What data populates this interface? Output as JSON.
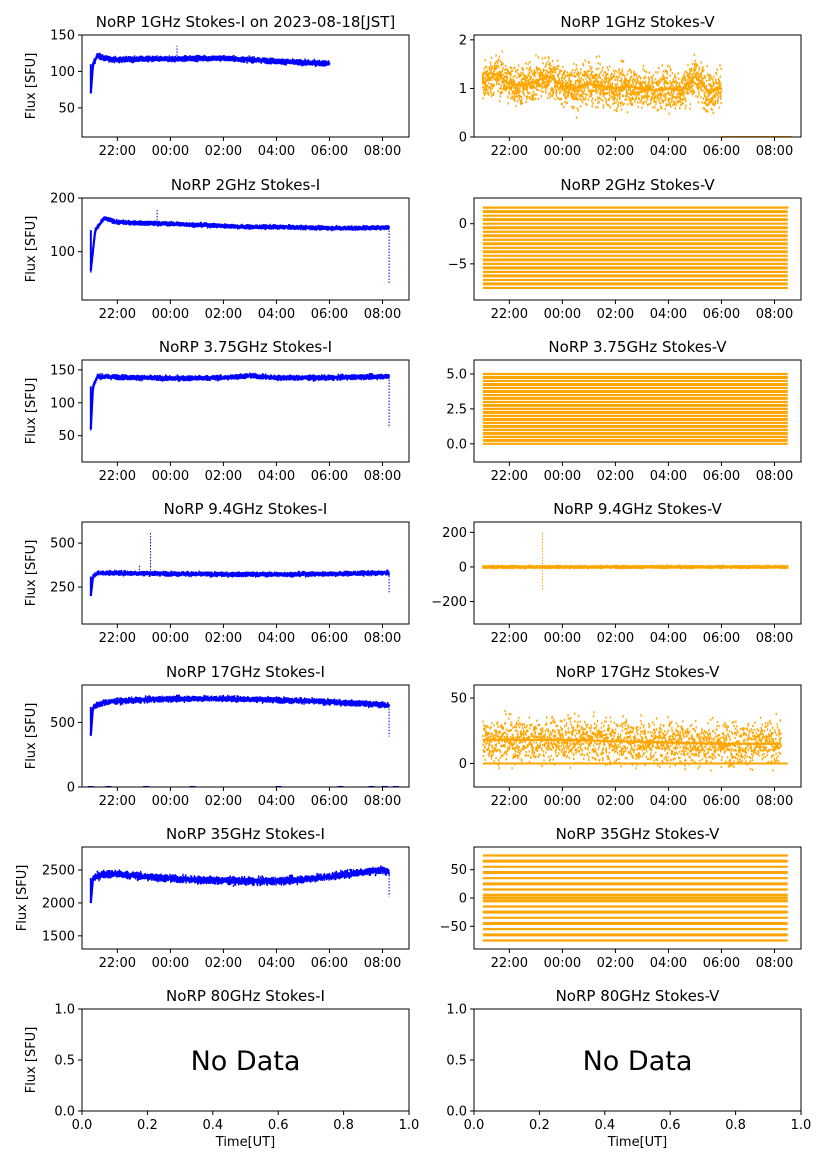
{
  "figure": {
    "xlabel": "Time[UT]",
    "ylabel": "Flux [SFU]",
    "series_colors": {
      "stokes_i": "#0000ff",
      "stokes_v": "#ffa500"
    },
    "time_ticks": [
      "22:00",
      "00:00",
      "02:00",
      "04:00",
      "06:00",
      "08:00"
    ]
  },
  "chart_data": [
    {
      "id": "1ghz-i",
      "type": "scatter",
      "title": "NoRP 1GHz Stokes-I on 2023-08-18[JST]",
      "ylabel": "Flux [SFU]",
      "xlabel": "",
      "color": "#0000ff",
      "x_range": [
        "20:40",
        "09:00"
      ],
      "ylim": [
        10,
        150
      ],
      "y_ticks": [
        {
          "v": 50,
          "t": "50"
        },
        {
          "v": 100,
          "t": "100"
        },
        {
          "v": 150,
          "t": "150"
        }
      ],
      "trace": {
        "x": [
          "21:00",
          "21:05",
          "21:15",
          "21:30",
          "22:00",
          "23:00",
          "00:00",
          "01:00",
          "02:00",
          "03:00",
          "04:00",
          "05:00",
          "06:00"
        ],
        "y": [
          70,
          110,
          122,
          118,
          116,
          117,
          117,
          118,
          118,
          116,
          114,
          112,
          111
        ]
      },
      "spread": 3,
      "range_end": "06:00",
      "spikes": [
        {
          "x": "00:15",
          "y": 135
        }
      ]
    },
    {
      "id": "1ghz-v",
      "type": "scatter",
      "title": "NoRP 1GHz Stokes-V",
      "ylabel": "",
      "xlabel": "",
      "color": "#ffa500",
      "x_range": [
        "20:40",
        "09:00"
      ],
      "ylim": [
        0,
        2.1
      ],
      "y_ticks": [
        {
          "v": 0,
          "t": "0"
        },
        {
          "v": 1,
          "t": "1"
        },
        {
          "v": 2,
          "t": "2"
        }
      ],
      "trace": {
        "x": [
          "21:00",
          "21:30",
          "22:00",
          "22:30",
          "23:00",
          "23:30",
          "00:00",
          "00:30",
          "01:00",
          "01:30",
          "02:00",
          "02:30",
          "03:00",
          "03:30",
          "04:00",
          "04:30",
          "05:00",
          "05:30",
          "06:00"
        ],
        "y": [
          1.1,
          1.3,
          1.1,
          1.05,
          1.15,
          1.25,
          1.05,
          1.0,
          1.1,
          1.05,
          1.0,
          1.05,
          1.0,
          0.95,
          1.0,
          0.95,
          1.25,
          0.95,
          1.0
        ]
      },
      "spread": 0.4,
      "range_end": "06:00",
      "baseline": {
        "from": "06:00",
        "to": "08:40",
        "y": 0
      }
    },
    {
      "id": "2ghz-i",
      "type": "scatter",
      "title": "NoRP 2GHz Stokes-I",
      "ylabel": "Flux [SFU]",
      "xlabel": "",
      "color": "#0000ff",
      "x_range": [
        "20:40",
        "09:00"
      ],
      "ylim": [
        10,
        200
      ],
      "y_ticks": [
        {
          "v": 100,
          "t": "100"
        },
        {
          "v": 200,
          "t": "200"
        }
      ],
      "trace": {
        "x": [
          "21:00",
          "21:10",
          "21:30",
          "22:00",
          "23:00",
          "00:00",
          "01:00",
          "02:00",
          "03:00",
          "04:00",
          "05:00",
          "06:00",
          "07:00",
          "08:00",
          "08:15"
        ],
        "y": [
          65,
          140,
          162,
          155,
          153,
          152,
          150,
          148,
          146,
          146,
          145,
          144,
          144,
          145,
          145
        ]
      },
      "spread": 3,
      "range_end": "08:15",
      "spikes": [
        {
          "x": "23:30",
          "y": 180
        },
        {
          "x": "08:15",
          "y": 40
        }
      ]
    },
    {
      "id": "2ghz-v",
      "type": "levels",
      "title": "NoRP 2GHz Stokes-V",
      "ylabel": "",
      "xlabel": "",
      "color": "#ffa500",
      "x_range": [
        "20:40",
        "09:00"
      ],
      "ylim": [
        -9.5,
        3.2
      ],
      "y_ticks": [
        {
          "v": -5,
          "t": "−5"
        },
        {
          "v": 0,
          "t": "0"
        }
      ],
      "levels": [
        2,
        1.5,
        1,
        0.5,
        0,
        -0.5,
        -1,
        -1.5,
        -2,
        -2.5,
        -3,
        -3.5,
        -4,
        -4.5,
        -5,
        -5.5,
        -6,
        -6.5,
        -7,
        -7.5,
        -8
      ],
      "data_start": "21:00",
      "range_end": "08:30"
    },
    {
      "id": "375ghz-i",
      "type": "scatter",
      "title": "NoRP 3.75GHz Stokes-I",
      "ylabel": "Flux [SFU]",
      "xlabel": "",
      "color": "#0000ff",
      "x_range": [
        "20:40",
        "09:00"
      ],
      "ylim": [
        10,
        165
      ],
      "y_ticks": [
        {
          "v": 50,
          "t": "50"
        },
        {
          "v": 100,
          "t": "100"
        },
        {
          "v": 150,
          "t": "150"
        }
      ],
      "trace": {
        "x": [
          "21:00",
          "21:05",
          "21:15",
          "22:00",
          "00:00",
          "02:00",
          "03:00",
          "04:00",
          "06:00",
          "08:00",
          "08:15"
        ],
        "y": [
          60,
          125,
          140,
          139,
          137,
          138,
          141,
          138,
          138,
          140,
          140
        ]
      },
      "spread": 3,
      "range_end": "08:15",
      "spikes": [
        {
          "x": "08:15",
          "y": 62
        }
      ]
    },
    {
      "id": "375ghz-v",
      "type": "levels",
      "title": "NoRP 3.75GHz Stokes-V",
      "ylabel": "",
      "xlabel": "",
      "color": "#ffa500",
      "x_range": [
        "20:40",
        "09:00"
      ],
      "ylim": [
        -1.3,
        6
      ],
      "y_ticks": [
        {
          "v": 0,
          "t": "0.0"
        },
        {
          "v": 2.5,
          "t": "2.5"
        },
        {
          "v": 5,
          "t": "5.0"
        }
      ],
      "levels": [
        0,
        0.25,
        0.5,
        0.75,
        1,
        1.25,
        1.5,
        1.75,
        2,
        2.25,
        2.5,
        2.75,
        3,
        3.25,
        3.5,
        3.75,
        4,
        4.25,
        4.5,
        4.75,
        5
      ],
      "data_start": "21:00",
      "range_end": "08:30"
    },
    {
      "id": "94ghz-i",
      "type": "scatter",
      "title": "NoRP 9.4GHz Stokes-I",
      "ylabel": "Flux [SFU]",
      "xlabel": "",
      "color": "#0000ff",
      "x_range": [
        "20:40",
        "09:00"
      ],
      "ylim": [
        40,
        620
      ],
      "y_ticks": [
        {
          "v": 250,
          "t": "250"
        },
        {
          "v": 500,
          "t": "500"
        }
      ],
      "trace": {
        "x": [
          "21:00",
          "21:05",
          "21:15",
          "22:00",
          "23:00",
          "00:00",
          "02:00",
          "04:00",
          "06:00",
          "08:00",
          "08:15"
        ],
        "y": [
          200,
          310,
          330,
          330,
          328,
          326,
          322,
          322,
          325,
          330,
          330
        ]
      },
      "spread": 10,
      "range_end": "08:15",
      "spikes": [
        {
          "x": "23:15",
          "y": 560
        },
        {
          "x": "22:50",
          "y": 380
        },
        {
          "x": "08:15",
          "y": 220
        }
      ]
    },
    {
      "id": "94ghz-v",
      "type": "scatter",
      "title": "NoRP 9.4GHz Stokes-V",
      "ylabel": "",
      "xlabel": "",
      "color": "#ffa500",
      "x_range": [
        "20:40",
        "09:00"
      ],
      "ylim": [
        -330,
        260
      ],
      "y_ticks": [
        {
          "v": -200,
          "t": "−200"
        },
        {
          "v": 0,
          "t": "0"
        },
        {
          "v": 200,
          "t": "200"
        }
      ],
      "trace": {
        "x": [
          "21:00",
          "08:30"
        ],
        "y": [
          0,
          0
        ]
      },
      "spread": 6,
      "range_end": "08:30",
      "spikes": [
        {
          "x": "23:15",
          "y": 200
        },
        {
          "x": "23:15",
          "y": -130
        }
      ]
    },
    {
      "id": "17ghz-i",
      "type": "scatter",
      "title": "NoRP 17GHz Stokes-I",
      "ylabel": "Flux [SFU]",
      "xlabel": "",
      "color": "#0000ff",
      "x_range": [
        "20:40",
        "09:00"
      ],
      "ylim": [
        0,
        790
      ],
      "y_ticks": [
        {
          "v": 0,
          "t": "0"
        },
        {
          "v": 500,
          "t": "500"
        }
      ],
      "trace": {
        "x": [
          "21:00",
          "21:05",
          "21:30",
          "22:00",
          "23:00",
          "00:00",
          "01:00",
          "02:00",
          "03:00",
          "04:00",
          "05:00",
          "06:00",
          "07:00",
          "08:00",
          "08:15"
        ],
        "y": [
          400,
          620,
          655,
          665,
          675,
          682,
          685,
          684,
          680,
          675,
          667,
          658,
          648,
          637,
          630
        ]
      },
      "spread": 18,
      "range_end": "08:15",
      "spikes": [
        {
          "x": "08:15",
          "y": 390
        }
      ],
      "zero_marks": [
        "21:00",
        "21:40",
        "23:05",
        "00:50",
        "04:05",
        "06:25",
        "07:35",
        "08:05",
        "08:30"
      ]
    },
    {
      "id": "17ghz-v",
      "type": "scatter",
      "title": "NoRP 17GHz Stokes-V",
      "ylabel": "",
      "xlabel": "",
      "color": "#ffa500",
      "x_range": [
        "20:40",
        "09:00"
      ],
      "ylim": [
        -18,
        60
      ],
      "y_ticks": [
        {
          "v": 0,
          "t": "0"
        },
        {
          "v": 50,
          "t": "50"
        }
      ],
      "trace": {
        "x": [
          "21:00",
          "22:00",
          "00:00",
          "02:00",
          "04:00",
          "06:00",
          "08:00",
          "08:15"
        ],
        "y": [
          18,
          18,
          18,
          17,
          16,
          15,
          15,
          15
        ]
      },
      "spread": 16,
      "range_end": "08:15",
      "baseline": {
        "from": "21:00",
        "to": "08:30",
        "y": 0
      }
    },
    {
      "id": "35ghz-i",
      "type": "scatter",
      "title": "NoRP 35GHz Stokes-I",
      "ylabel": "Flux [SFU]",
      "xlabel": "",
      "color": "#0000ff",
      "x_range": [
        "20:40",
        "09:00"
      ],
      "ylim": [
        1300,
        2850
      ],
      "y_ticks": [
        {
          "v": 1500,
          "t": "1500"
        },
        {
          "v": 2000,
          "t": "2000"
        },
        {
          "v": 2500,
          "t": "2500"
        }
      ],
      "trace": {
        "x": [
          "21:00",
          "21:05",
          "21:30",
          "22:00",
          "23:00",
          "00:00",
          "01:00",
          "02:00",
          "03:00",
          "04:00",
          "05:00",
          "06:00",
          "07:00",
          "08:00",
          "08:15"
        ],
        "y": [
          2000,
          2380,
          2440,
          2440,
          2400,
          2370,
          2350,
          2340,
          2330,
          2330,
          2360,
          2400,
          2460,
          2500,
          2470
        ]
      },
      "spread": 50,
      "range_end": "08:15",
      "spikes": [
        {
          "x": "08:15",
          "y": 2100
        }
      ]
    },
    {
      "id": "35ghz-v",
      "type": "levels",
      "title": "NoRP 35GHz Stokes-V",
      "ylabel": "",
      "xlabel": "",
      "color": "#ffa500",
      "x_range": [
        "20:40",
        "09:00"
      ],
      "ylim": [
        -90,
        90
      ],
      "y_ticks": [
        {
          "v": -50,
          "t": "−50"
        },
        {
          "v": 0,
          "t": "0"
        },
        {
          "v": 50,
          "t": "50"
        }
      ],
      "levels": [
        75,
        65,
        55,
        45,
        35,
        25,
        15,
        5,
        0,
        -5,
        -15,
        -25,
        -35,
        -45,
        -55,
        -65,
        -75
      ],
      "data_start": "21:00",
      "range_end": "08:30"
    },
    {
      "id": "80ghz-i",
      "type": "scatter",
      "title": "NoRP 80GHz Stokes-I",
      "ylabel": "Flux [SFU]",
      "xlabel": "Time[UT]",
      "color": "#0000ff",
      "message": "No Data",
      "xlim": [
        0,
        1
      ],
      "ylim": [
        0,
        1
      ],
      "x_ticks": [
        {
          "v": 0,
          "t": "0.0"
        },
        {
          "v": 0.2,
          "t": "0.2"
        },
        {
          "v": 0.4,
          "t": "0.4"
        },
        {
          "v": 0.6,
          "t": "0.6"
        },
        {
          "v": 0.8,
          "t": "0.8"
        },
        {
          "v": 1,
          "t": "1.0"
        }
      ],
      "y_ticks": [
        {
          "v": 0,
          "t": "0.0"
        },
        {
          "v": 0.5,
          "t": "0.5"
        },
        {
          "v": 1,
          "t": "1.0"
        }
      ]
    },
    {
      "id": "80ghz-v",
      "type": "scatter",
      "title": "NoRP 80GHz Stokes-V",
      "ylabel": "",
      "xlabel": "Time[UT]",
      "color": "#ffa500",
      "message": "No Data",
      "xlim": [
        0,
        1
      ],
      "ylim": [
        0,
        1
      ],
      "x_ticks": [
        {
          "v": 0,
          "t": "0.0"
        },
        {
          "v": 0.2,
          "t": "0.2"
        },
        {
          "v": 0.4,
          "t": "0.4"
        },
        {
          "v": 0.6,
          "t": "0.6"
        },
        {
          "v": 0.8,
          "t": "0.8"
        },
        {
          "v": 1,
          "t": "1.0"
        }
      ],
      "y_ticks": [
        {
          "v": 0,
          "t": "0.0"
        },
        {
          "v": 0.5,
          "t": "0.5"
        },
        {
          "v": 1,
          "t": "1.0"
        }
      ]
    }
  ]
}
